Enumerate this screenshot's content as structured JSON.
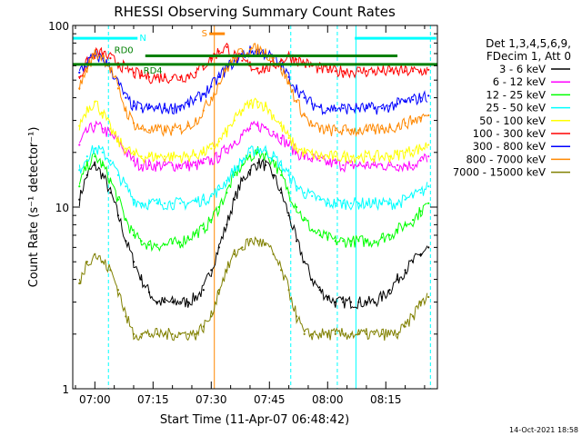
{
  "chart_data": {
    "type": "line",
    "title": "RHESSI Observing Summary Count Rates",
    "xlabel": "Start Time (11-Apr-07 06:48:42)",
    "ylabel": "Count Rate (s⁻¹ detector⁻¹)",
    "yscale": "log",
    "ylim": [
      1,
      100
    ],
    "xlim_minutes": [
      -5.7,
      88.3
    ],
    "x_ticks": [
      {
        "label": "07:00",
        "minutes": 0
      },
      {
        "label": "07:15",
        "minutes": 15
      },
      {
        "label": "07:30",
        "minutes": 30
      },
      {
        "label": "07:45",
        "minutes": 45
      },
      {
        "label": "08:00",
        "minutes": 60
      },
      {
        "label": "08:15",
        "minutes": 75
      }
    ],
    "y_ticks": [
      {
        "label": "1",
        "value": 1
      },
      {
        "label": "10",
        "value": 10
      },
      {
        "label": "100",
        "value": 100
      }
    ],
    "legend_header": [
      "Det 1,3,4,5,6,9,",
      "FDecim 1, Att 0"
    ],
    "series": [
      {
        "name": "3 - 6 keV",
        "color": "#000000",
        "x": [
          -4,
          -2,
          0,
          2,
          4,
          6,
          8,
          10,
          12,
          14,
          16,
          18,
          20,
          22,
          24,
          26,
          28,
          30,
          32,
          34,
          36,
          38,
          40,
          42,
          44,
          46,
          48,
          50,
          52,
          54,
          56,
          58,
          60,
          62,
          64,
          66,
          68,
          70,
          72,
          74,
          76,
          78,
          80,
          82,
          84,
          86
        ],
        "y": [
          11,
          15,
          17,
          15,
          12,
          9,
          6.5,
          5,
          4,
          3.4,
          3,
          3,
          3,
          3,
          3,
          3.2,
          3.5,
          4.5,
          6,
          8,
          11,
          14,
          16,
          17.5,
          17,
          15,
          12,
          9,
          6.5,
          5,
          4,
          3.5,
          3.2,
          3,
          3,
          3,
          3,
          3,
          3,
          3.2,
          3.5,
          4,
          4.5,
          5,
          5.5,
          6
        ]
      },
      {
        "name": "6 - 12 keV",
        "color": "#ff00ff",
        "x": [
          -4,
          -2,
          0,
          2,
          4,
          6,
          8,
          10,
          12,
          14,
          16,
          18,
          20,
          22,
          24,
          26,
          28,
          30,
          32,
          34,
          36,
          38,
          40,
          42,
          44,
          46,
          48,
          50,
          52,
          54,
          56,
          58,
          60,
          62,
          64,
          66,
          68,
          70,
          72,
          74,
          76,
          78,
          80,
          82,
          84,
          86
        ],
        "y": [
          22,
          26,
          28,
          27,
          25,
          23,
          20,
          18,
          17,
          17,
          17,
          17,
          17,
          17,
          17,
          17,
          17.5,
          18,
          19,
          21,
          23,
          25,
          27,
          28,
          27.5,
          26,
          24,
          22,
          20,
          19,
          18.5,
          18,
          17.5,
          17.5,
          17,
          17,
          17,
          17,
          17,
          17,
          17,
          17,
          17,
          17,
          18,
          19
        ]
      },
      {
        "name": "12 - 25 keV",
        "color": "#00ff00",
        "x": [
          -4,
          -2,
          0,
          2,
          4,
          6,
          8,
          10,
          12,
          14,
          16,
          18,
          20,
          22,
          24,
          26,
          28,
          30,
          32,
          34,
          36,
          38,
          40,
          42,
          44,
          46,
          48,
          50,
          52,
          54,
          56,
          58,
          60,
          62,
          64,
          66,
          68,
          70,
          72,
          74,
          76,
          78,
          80,
          82,
          84,
          86
        ],
        "y": [
          13,
          17,
          19,
          17,
          14,
          11,
          8.5,
          7,
          6.5,
          6.2,
          6.2,
          6.2,
          6.3,
          6.4,
          6.8,
          7.2,
          7.6,
          8.5,
          10,
          12,
          15,
          17,
          19,
          20,
          19.5,
          18,
          15,
          12,
          10,
          8.5,
          7.5,
          7,
          6.8,
          6.5,
          6.5,
          6.5,
          6.5,
          6.5,
          6.5,
          6.8,
          7,
          7.5,
          8,
          8.5,
          9.5,
          10.5
        ]
      },
      {
        "name": "25 - 50 keV",
        "color": "#00ffff",
        "x": [
          -4,
          -2,
          0,
          2,
          4,
          6,
          8,
          10,
          12,
          14,
          16,
          18,
          20,
          22,
          24,
          26,
          28,
          30,
          32,
          34,
          36,
          38,
          40,
          42,
          44,
          46,
          48,
          50,
          52,
          54,
          56,
          58,
          60,
          62,
          64,
          66,
          68,
          70,
          72,
          74,
          76,
          78,
          80,
          82,
          84,
          86
        ],
        "y": [
          16,
          19,
          21,
          20,
          18,
          15,
          13,
          11,
          10.5,
          10.5,
          10.5,
          10.5,
          10.5,
          10.5,
          10.5,
          10.8,
          11,
          11.5,
          12.5,
          14,
          16,
          18,
          20,
          21,
          20.5,
          19,
          17,
          15,
          13,
          12,
          11.5,
          11,
          10.5,
          10.5,
          10.5,
          10.5,
          10.5,
          10.5,
          10.5,
          10.5,
          10.5,
          10.5,
          11,
          11.5,
          12,
          13
        ]
      },
      {
        "name": "50 - 100 keV",
        "color": "#ffff00",
        "x": [
          -4,
          -2,
          0,
          2,
          4,
          6,
          8,
          10,
          12,
          14,
          16,
          18,
          20,
          22,
          24,
          26,
          28,
          30,
          32,
          34,
          36,
          38,
          40,
          42,
          44,
          46,
          48,
          50,
          52,
          54,
          56,
          58,
          60,
          62,
          64,
          66,
          68,
          70,
          72,
          74,
          76,
          78,
          80,
          82,
          84,
          86
        ],
        "y": [
          28,
          35,
          38,
          33,
          27,
          23,
          21,
          19.5,
          19,
          19,
          19,
          19,
          19,
          19,
          19,
          19.5,
          20,
          21,
          23,
          26,
          30,
          34,
          37,
          38,
          36,
          32,
          28,
          24,
          21,
          20,
          19.5,
          19,
          19,
          19,
          19,
          19,
          19,
          19,
          19,
          19,
          19,
          19.5,
          20,
          20.5,
          21,
          22
        ]
      },
      {
        "name": "100 - 300 keV",
        "color": "#ff0000",
        "x": [
          -4,
          -2,
          0,
          2,
          4,
          6,
          8,
          10,
          12,
          14,
          16,
          18,
          20,
          22,
          24,
          26,
          28,
          30,
          32,
          34,
          36,
          38,
          40,
          42,
          44,
          46,
          48,
          50,
          52,
          54,
          56,
          58,
          60,
          62,
          64,
          66,
          68,
          70,
          72,
          74,
          76,
          78,
          80,
          82,
          84,
          86
        ],
        "y": [
          52,
          62,
          70,
          70,
          66,
          62,
          58,
          55,
          53,
          52,
          52,
          52,
          52,
          52,
          53,
          55,
          60,
          66,
          72,
          76,
          68,
          64,
          60,
          58,
          58,
          60,
          64,
          68,
          65,
          62,
          60,
          58,
          57,
          56,
          56,
          56,
          56,
          56,
          56,
          56,
          56,
          56,
          56,
          56,
          56,
          57
        ]
      },
      {
        "name": "300 - 800 keV",
        "color": "#0000ff",
        "x": [
          -4,
          -2,
          0,
          2,
          4,
          6,
          8,
          10,
          12,
          14,
          16,
          18,
          20,
          22,
          24,
          26,
          28,
          30,
          32,
          34,
          36,
          38,
          40,
          42,
          44,
          46,
          48,
          50,
          52,
          54,
          56,
          58,
          60,
          62,
          64,
          66,
          68,
          70,
          72,
          74,
          76,
          78,
          80,
          82,
          84,
          86
        ],
        "y": [
          55,
          62,
          68,
          66,
          58,
          48,
          40,
          36,
          35,
          35,
          35,
          35,
          35,
          36,
          37,
          39,
          42,
          46,
          52,
          58,
          64,
          69,
          72,
          72,
          70,
          66,
          60,
          52,
          45,
          40,
          37,
          35.5,
          35,
          35,
          35,
          35,
          35,
          35,
          35,
          35,
          36,
          37,
          38,
          39,
          40,
          41
        ]
      },
      {
        "name": "800 - 7000 keV",
        "color": "#ff8800",
        "x": [
          -4,
          -2,
          0,
          2,
          4,
          6,
          8,
          10,
          12,
          14,
          16,
          18,
          20,
          22,
          24,
          26,
          28,
          30,
          32,
          34,
          36,
          38,
          40,
          42,
          44,
          46,
          48,
          50,
          52,
          54,
          56,
          58,
          60,
          62,
          64,
          66,
          68,
          70,
          72,
          74,
          76,
          78,
          80,
          82,
          84,
          86
        ],
        "y": [
          45,
          58,
          70,
          68,
          58,
          45,
          34,
          29,
          27,
          26.5,
          26.5,
          26.5,
          26.5,
          27,
          28,
          30,
          34,
          40,
          48,
          58,
          66,
          72,
          74,
          74,
          71,
          66,
          58,
          48,
          38,
          32,
          28,
          27,
          26.5,
          26.5,
          26.5,
          26.5,
          26.5,
          26.5,
          26.5,
          27,
          27.5,
          28,
          29,
          30,
          31,
          32
        ]
      },
      {
        "name": "7000 - 15000 keV",
        "color": "#808000",
        "x": [
          -4,
          -2,
          0,
          2,
          4,
          6,
          8,
          10,
          12,
          14,
          16,
          18,
          20,
          22,
          24,
          26,
          28,
          30,
          32,
          34,
          36,
          38,
          40,
          42,
          44,
          46,
          48,
          50,
          52,
          54,
          56,
          58,
          60,
          62,
          64,
          66,
          68,
          70,
          72,
          74,
          76,
          78,
          80,
          82,
          84,
          86
        ],
        "y": [
          3.8,
          5,
          5.5,
          5,
          4.5,
          3.5,
          2.5,
          2,
          2,
          2,
          2,
          2,
          2,
          2,
          2,
          2,
          2.2,
          2.5,
          3.5,
          4.5,
          5.5,
          6,
          6.5,
          6.5,
          6.2,
          5.5,
          4.5,
          3.5,
          2.5,
          2,
          2,
          2,
          2,
          2,
          2,
          2,
          2,
          2,
          2,
          2,
          2,
          2,
          2.2,
          2.5,
          3,
          3.2
        ]
      }
    ],
    "attenuator_markers": [
      {
        "label": "N",
        "color": "#00ffff",
        "value": 85,
        "x_ranges": [
          [
            -5.7,
            11
          ],
          [
            67,
            88
          ]
        ]
      },
      {
        "label": "RD0",
        "color": "#008000",
        "value": 68,
        "x_ranges": [
          [
            13,
            78
          ]
        ]
      },
      {
        "label": "RD4",
        "color": "#008000",
        "value": 61,
        "x_ranges": [
          [
            -5.7,
            88.3
          ]
        ]
      },
      {
        "label": "S",
        "color": "#ff8800",
        "value": 90,
        "x_ranges": [
          [
            29.5,
            33.5
          ]
        ]
      }
    ],
    "vertical_markers": [
      {
        "minutes": 3.5,
        "color": "#00ffff",
        "style": "dash"
      },
      {
        "minutes": 30.8,
        "color": "#ff8800",
        "style": "solid"
      },
      {
        "minutes": 50.5,
        "color": "#00ffff",
        "style": "dash"
      },
      {
        "minutes": 62.5,
        "color": "#00ffff",
        "style": "dash"
      },
      {
        "minutes": 67.3,
        "color": "#00ffff",
        "style": "solid"
      },
      {
        "minutes": 86.5,
        "color": "#00ffff",
        "style": "dash"
      }
    ],
    "footer_timestamp": "14-Oct-2021 18:58"
  }
}
